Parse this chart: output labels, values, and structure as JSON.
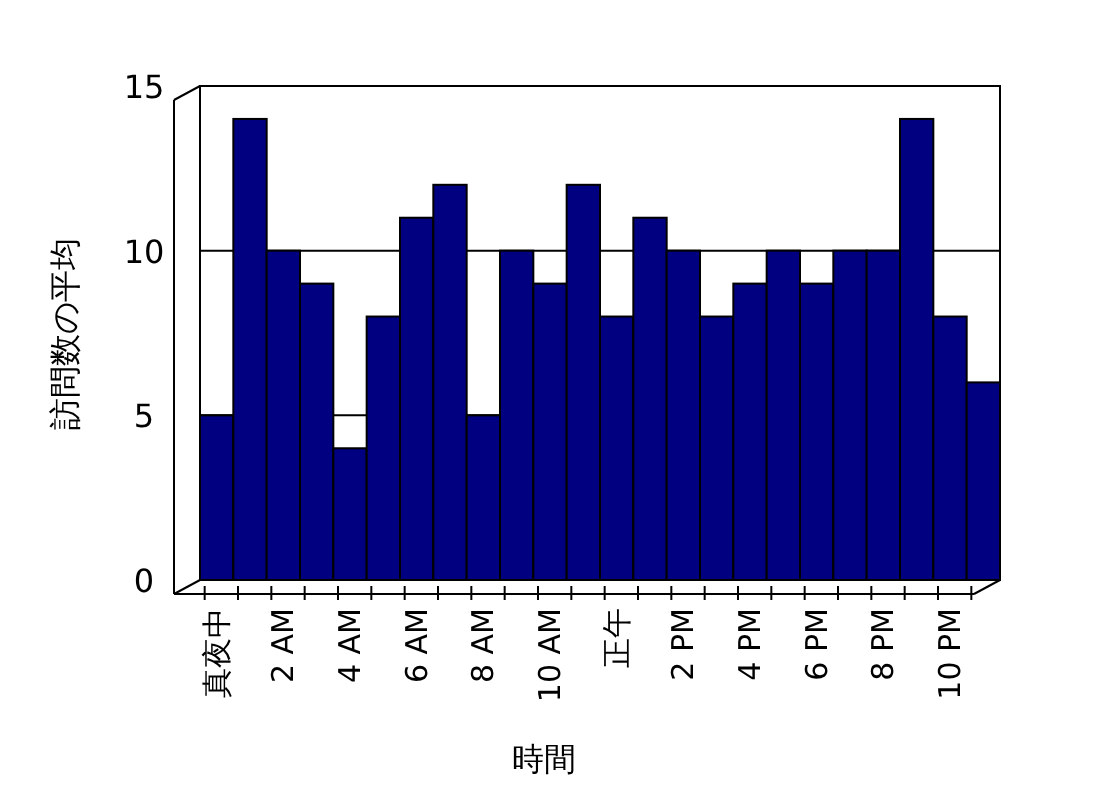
{
  "chart_data": {
    "type": "bar",
    "xlabel": "時間",
    "ylabel": "訪問数の平均",
    "categories": [
      "真夜中",
      null,
      "2 AM",
      null,
      "4 AM",
      null,
      "6 AM",
      null,
      "8 AM",
      null,
      "10 AM",
      null,
      "正午",
      null,
      "2 PM",
      null,
      "4 PM",
      null,
      "6 PM",
      null,
      "8 PM",
      null,
      "10 PM",
      null
    ],
    "values": [
      5,
      14,
      10,
      9,
      4,
      8,
      11,
      12,
      5,
      10,
      9,
      12,
      8,
      11,
      10,
      8,
      9,
      10,
      9,
      10,
      10,
      14,
      8,
      6
    ],
    "color": "#000080",
    "ylim": [
      0,
      15
    ],
    "yticks": [
      0,
      5,
      10,
      15
    ],
    "grid": "y"
  }
}
